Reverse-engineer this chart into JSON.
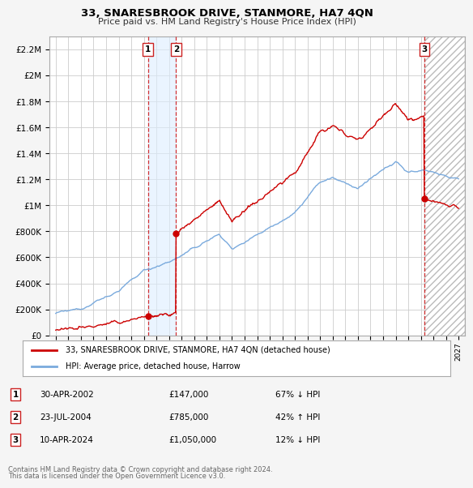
{
  "title": "33, SNARESBROOK DRIVE, STANMORE, HA7 4QN",
  "subtitle": "Price paid vs. HM Land Registry's House Price Index (HPI)",
  "legend_line1": "33, SNARESBROOK DRIVE, STANMORE, HA7 4QN (detached house)",
  "legend_line2": "HPI: Average price, detached house, Harrow",
  "footer1": "Contains HM Land Registry data © Crown copyright and database right 2024.",
  "footer2": "This data is licensed under the Open Government Licence v3.0.",
  "transactions": [
    {
      "num": 1,
      "date": "30-APR-2002",
      "price": "£147,000",
      "hpi": "67% ↓ HPI",
      "x_year": 2002.33
    },
    {
      "num": 2,
      "date": "23-JUL-2004",
      "price": "£785,000",
      "hpi": "42% ↑ HPI",
      "x_year": 2004.56
    },
    {
      "num": 3,
      "date": "10-APR-2024",
      "price": "£1,050,000",
      "hpi": "12% ↓ HPI",
      "x_year": 2024.28
    }
  ],
  "transaction_prices": [
    147000,
    785000,
    1050000
  ],
  "transaction_years": [
    2002.33,
    2004.56,
    2024.28
  ],
  "ylim": [
    0,
    2300000
  ],
  "xlim_left": 1994.5,
  "xlim_right": 2027.5,
  "hpi_color": "#7aaadd",
  "price_color": "#cc0000",
  "background_color": "#f5f5f5",
  "plot_bg": "#ffffff",
  "grid_color": "#cccccc"
}
